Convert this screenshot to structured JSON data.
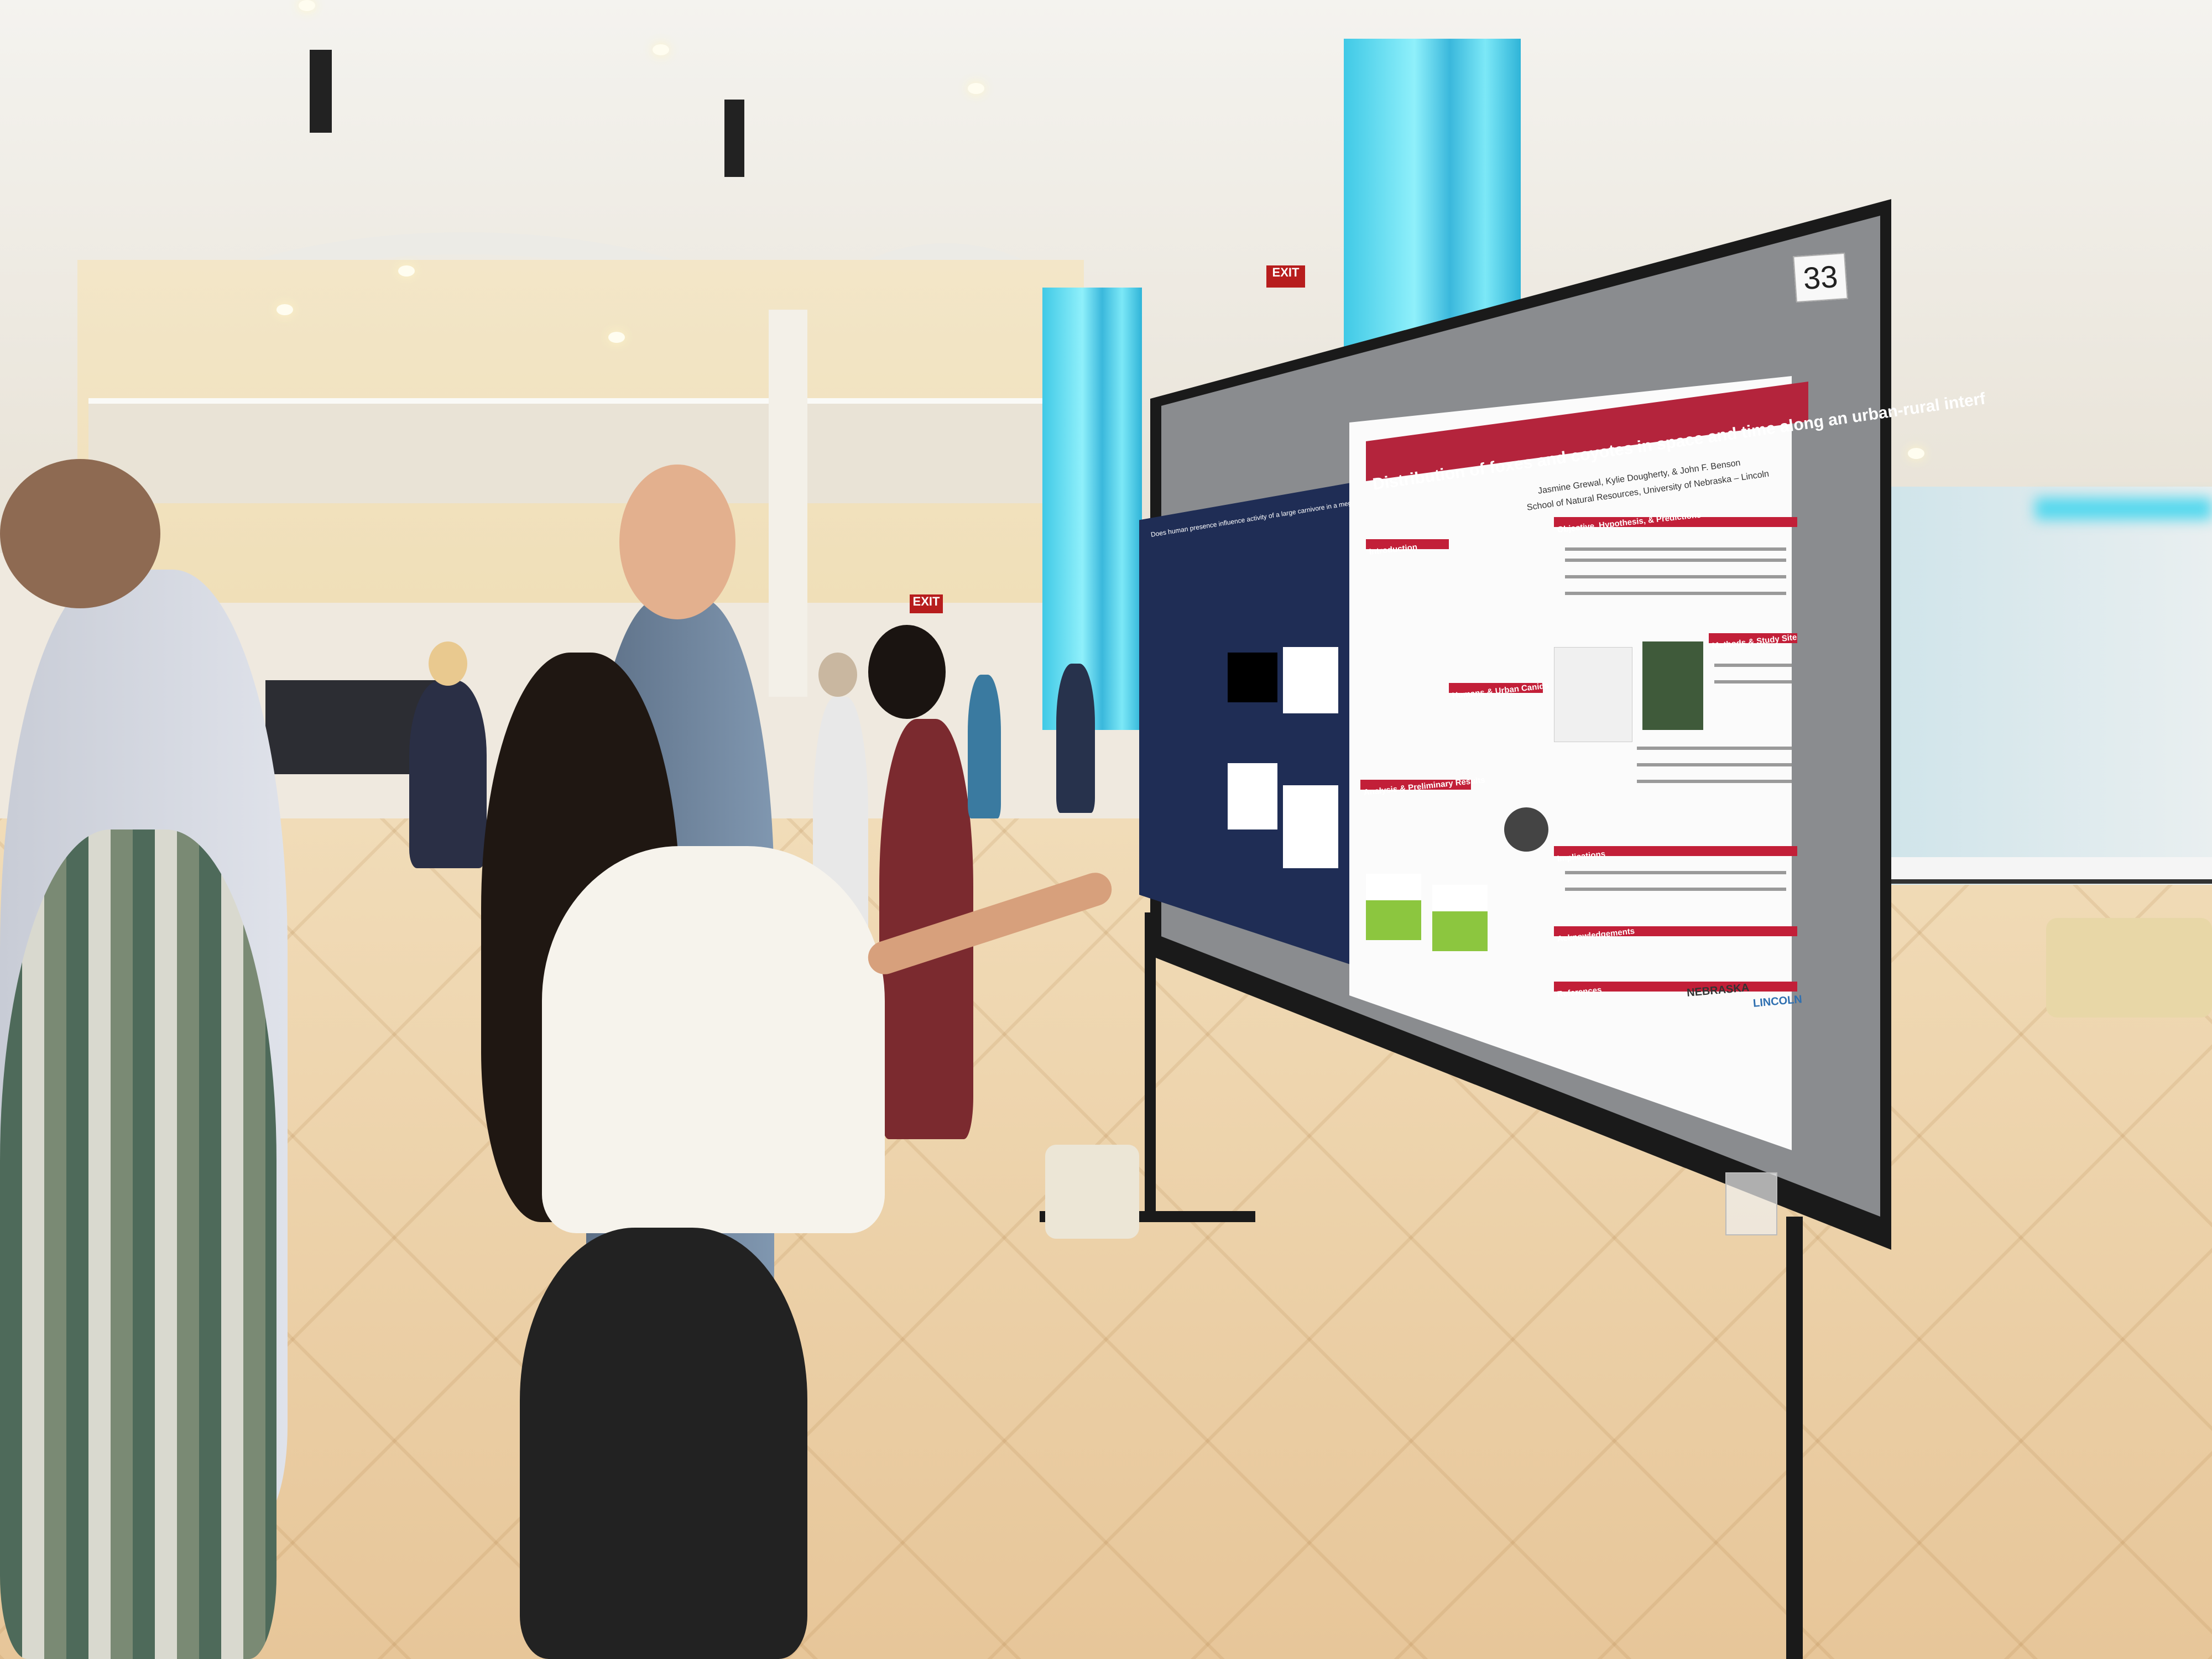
{
  "scene": {
    "poster_number": "33",
    "main_poster": {
      "title": "Distribution of foxes and coyotes in space and time along an urban-rural interf",
      "authors": "Jasmine Grewal, Kylie Dougherty, & John F. Benson",
      "affiliation": "School of Natural Resources, University of Nebraska – Lincoln",
      "sections": [
        "Introduction",
        "Objective, Hypothesis, & Predictions",
        "Humans & Urban Canids",
        "Methods & Study Site",
        "Analysis & Preliminary Results",
        "Implications",
        "Acknowledgements",
        "References"
      ],
      "logo_text": "NEBRASKA",
      "logo_text_2": "LINCOLN"
    },
    "left_poster": {
      "title": "Does human presence influence activity of a large carnivore in a megacity?"
    },
    "exit_sign": "EXIT",
    "colors": {
      "poster_red": "#c21f38",
      "column_cyan": "#4fd3ec",
      "left_poster_navy": "#1f2d55",
      "board_frame": "#1a1a1a"
    }
  }
}
